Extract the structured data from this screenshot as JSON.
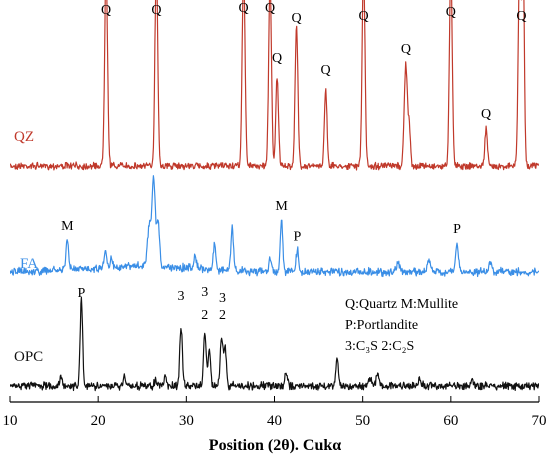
{
  "chart_data": {
    "type": "line",
    "title": "",
    "xlabel": "Position  (2θ). Cukα",
    "ylabel": "",
    "xlim": [
      10,
      70
    ],
    "x_ticks": [
      10,
      20,
      30,
      40,
      50,
      60,
      70
    ],
    "grid": false,
    "series": [
      {
        "name": "QZ",
        "color": "#c0392b",
        "peaks": [
          {
            "x": 20.9,
            "h": 1.25,
            "w": 0.16
          },
          {
            "x": 26.6,
            "h": 1.25,
            "w": 0.16
          },
          {
            "x": 36.5,
            "h": 1.25,
            "w": 0.16
          },
          {
            "x": 39.5,
            "h": 1.15,
            "w": 0.16
          },
          {
            "x": 40.3,
            "h": 0.56,
            "w": 0.15
          },
          {
            "x": 42.5,
            "h": 0.87,
            "w": 0.16
          },
          {
            "x": 45.8,
            "h": 0.48,
            "w": 0.15
          },
          {
            "x": 50.1,
            "h": 1.25,
            "w": 0.16
          },
          {
            "x": 54.9,
            "h": 0.64,
            "w": 0.18
          },
          {
            "x": 55.3,
            "h": 0.22,
            "w": 0.12
          },
          {
            "x": 60.0,
            "h": 1.25,
            "w": 0.16
          },
          {
            "x": 64.0,
            "h": 0.24,
            "w": 0.14
          },
          {
            "x": 67.8,
            "h": 1.25,
            "w": 0.16
          },
          {
            "x": 68.2,
            "h": 1.25,
            "w": 0.14
          }
        ],
        "labels": [
          {
            "text": "Q",
            "x": 20.9
          },
          {
            "text": "Q",
            "x": 26.6
          },
          {
            "text": "Q",
            "x": 36.5
          },
          {
            "text": "Q",
            "x": 39.5
          },
          {
            "text": "Q",
            "x": 40.3
          },
          {
            "text": "Q",
            "x": 42.5
          },
          {
            "text": "Q",
            "x": 45.8
          },
          {
            "text": "Q",
            "x": 50.1
          },
          {
            "text": "Q",
            "x": 54.9
          },
          {
            "text": "Q",
            "x": 60.0
          },
          {
            "text": "Q",
            "x": 64.0
          },
          {
            "text": "Q",
            "x": 68.0
          }
        ]
      },
      {
        "name": "FA",
        "color": "#3a8ee6",
        "peaks": [
          {
            "x": 16.5,
            "h": 0.22,
            "w": 0.14
          },
          {
            "x": 20.8,
            "h": 0.12,
            "w": 0.14
          },
          {
            "x": 21.5,
            "h": 0.07,
            "w": 0.14
          },
          {
            "x": 25.8,
            "h": 0.28,
            "w": 0.2
          },
          {
            "x": 26.3,
            "h": 0.6,
            "w": 0.18
          },
          {
            "x": 26.8,
            "h": 0.3,
            "w": 0.16
          },
          {
            "x": 31.0,
            "h": 0.1,
            "w": 0.14
          },
          {
            "x": 33.2,
            "h": 0.18,
            "w": 0.14
          },
          {
            "x": 35.2,
            "h": 0.3,
            "w": 0.14
          },
          {
            "x": 39.5,
            "h": 0.1,
            "w": 0.14
          },
          {
            "x": 40.8,
            "h": 0.36,
            "w": 0.14
          },
          {
            "x": 42.6,
            "h": 0.15,
            "w": 0.14
          },
          {
            "x": 54.0,
            "h": 0.07,
            "w": 0.2
          },
          {
            "x": 57.5,
            "h": 0.08,
            "w": 0.2
          },
          {
            "x": 60.7,
            "h": 0.2,
            "w": 0.15
          },
          {
            "x": 64.5,
            "h": 0.07,
            "w": 0.18
          }
        ],
        "labels": [
          {
            "text": "M",
            "x": 16.5
          },
          {
            "text": "M",
            "x": 40.8
          },
          {
            "text": "P",
            "x": 42.6
          },
          {
            "text": "P",
            "x": 60.7
          }
        ]
      },
      {
        "name": "OPC",
        "color": "#111111",
        "peaks": [
          {
            "x": 15.8,
            "h": 0.1,
            "w": 0.14
          },
          {
            "x": 18.1,
            "h": 0.8,
            "w": 0.14
          },
          {
            "x": 23.0,
            "h": 0.1,
            "w": 0.14
          },
          {
            "x": 26.5,
            "h": 0.06,
            "w": 0.14
          },
          {
            "x": 27.6,
            "h": 0.09,
            "w": 0.14
          },
          {
            "x": 29.4,
            "h": 0.53,
            "w": 0.15
          },
          {
            "x": 32.1,
            "h": 0.48,
            "w": 0.15
          },
          {
            "x": 32.6,
            "h": 0.34,
            "w": 0.14
          },
          {
            "x": 34.0,
            "h": 0.44,
            "w": 0.15
          },
          {
            "x": 34.4,
            "h": 0.34,
            "w": 0.14
          },
          {
            "x": 41.3,
            "h": 0.12,
            "w": 0.15
          },
          {
            "x": 47.1,
            "h": 0.25,
            "w": 0.16
          },
          {
            "x": 50.8,
            "h": 0.08,
            "w": 0.18
          },
          {
            "x": 51.7,
            "h": 0.12,
            "w": 0.16
          },
          {
            "x": 56.5,
            "h": 0.05,
            "w": 0.18
          },
          {
            "x": 62.4,
            "h": 0.05,
            "w": 0.18
          }
        ],
        "labels": [
          {
            "text": "P",
            "x": 18.1
          },
          {
            "text": "3",
            "x": 29.4
          },
          {
            "text": "3",
            "x": 32.1
          },
          {
            "text": "2",
            "x": 32.1
          },
          {
            "text": "3",
            "x": 34.1
          },
          {
            "text": "2",
            "x": 34.1
          }
        ]
      }
    ],
    "annotation_lines": [
      "Q:Quartz  M:Mullite",
      "P:Portlandite",
      "3:C₃S  2:C₂S"
    ]
  }
}
